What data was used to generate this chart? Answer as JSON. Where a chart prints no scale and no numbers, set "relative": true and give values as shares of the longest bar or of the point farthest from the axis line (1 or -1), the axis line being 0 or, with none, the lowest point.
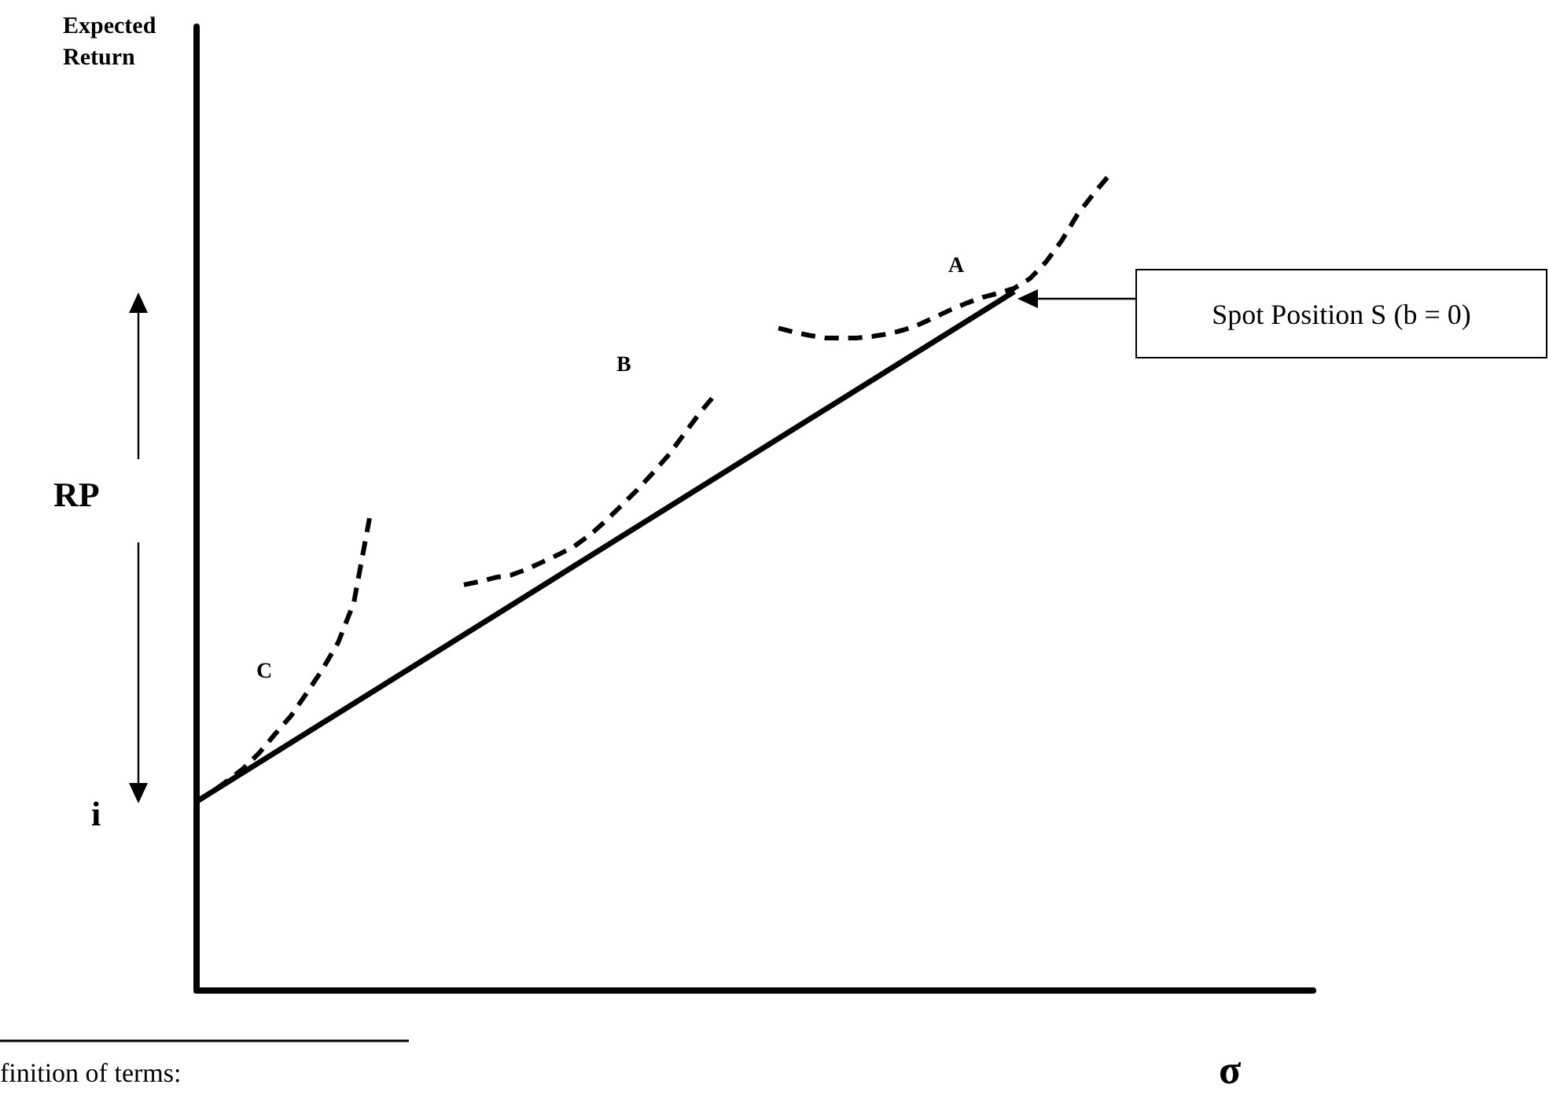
{
  "chart_data": {
    "type": "line",
    "relative": true,
    "ylabel": "Expected Return",
    "xlabel": "σ",
    "marker": "none",
    "categories": [
      null,
      null,
      null,
      null,
      null,
      null,
      null,
      null,
      null,
      null,
      null,
      null,
      null,
      null,
      null,
      null,
      null,
      null,
      null,
      null,
      null,
      null,
      null,
      null,
      null,
      null,
      null,
      null,
      null,
      null,
      null,
      null,
      null,
      null,
      null,
      null,
      null,
      null,
      null,
      null,
      null,
      null,
      null,
      null,
      null,
      null,
      null,
      null,
      null,
      null,
      null,
      null,
      null,
      null,
      null,
      null,
      null,
      null,
      null,
      null,
      null,
      null,
      null,
      null,
      null,
      null,
      null,
      null,
      null,
      null,
      null,
      null
    ],
    "series": [
      {
        "color": "#000000",
        "line_style": "solid",
        "values": [
          0.232,
          null,
          null,
          null,
          null,
          null,
          null,
          null,
          null,
          null,
          null,
          null,
          null,
          null,
          null,
          null,
          null,
          null,
          null,
          null,
          null,
          null,
          null,
          null,
          null,
          null,
          null,
          null,
          null,
          null,
          null,
          null,
          null,
          null,
          null,
          null,
          null,
          null,
          null,
          null,
          null,
          null,
          null,
          null,
          null,
          null,
          null,
          null,
          null,
          null,
          null,
          null,
          0.858,
          null,
          null,
          null,
          null,
          null,
          null,
          null,
          null,
          null,
          null,
          null,
          null,
          null,
          null,
          null,
          null,
          null,
          null,
          null
        ]
      },
      {
        "color": "#000000",
        "line_style": "dashed",
        "values": [
          0.232,
          0.244,
          0.258,
          0.273,
          0.292,
          0.315,
          0.337,
          0.365,
          0.394,
          0.427,
          0.476,
          0.58,
          null,
          null,
          null,
          null,
          null,
          null,
          null,
          null,
          null,
          null,
          null,
          null,
          null,
          null,
          null,
          null,
          null,
          null,
          null,
          null,
          null,
          null,
          null,
          null,
          null,
          null,
          null,
          null,
          null,
          null,
          null,
          null,
          null,
          null,
          null,
          null,
          null,
          null,
          null,
          null,
          null,
          null,
          null,
          null,
          null,
          null,
          null,
          null,
          null,
          null,
          null,
          null,
          null,
          null,
          null,
          null,
          null,
          null,
          null,
          null
        ]
      },
      {
        "color": "#000000",
        "line_style": "dashed",
        "values": [
          null,
          null,
          null,
          null,
          null,
          null,
          null,
          null,
          null,
          null,
          null,
          null,
          null,
          null,
          null,
          null,
          null,
          0.498,
          0.502,
          0.507,
          0.51,
          0.517,
          0.526,
          0.535,
          0.545,
          0.559,
          0.576,
          0.595,
          0.614,
          0.635,
          0.657,
          0.683,
          0.709,
          0.732,
          null,
          null,
          null,
          null,
          null,
          null,
          null,
          null,
          null,
          null,
          null,
          null,
          null,
          null,
          null,
          null,
          null,
          null,
          null,
          null,
          null,
          null,
          null,
          null,
          null,
          null,
          null,
          null,
          null,
          null,
          null,
          null,
          null,
          null,
          null,
          null,
          null,
          null
        ]
      },
      {
        "color": "#000000",
        "line_style": "dashed",
        "values": [
          null,
          null,
          null,
          null,
          null,
          null,
          null,
          null,
          null,
          null,
          null,
          null,
          null,
          null,
          null,
          null,
          null,
          null,
          null,
          null,
          null,
          null,
          null,
          null,
          null,
          null,
          null,
          null,
          null,
          null,
          null,
          null,
          null,
          null,
          null,
          null,
          null,
          0.813,
          0.808,
          0.804,
          0.801,
          0.801,
          0.801,
          0.803,
          0.806,
          0.811,
          0.818,
          0.827,
          0.836,
          0.844,
          0.851,
          0.856,
          0.862,
          0.874,
          0.894,
          0.92,
          0.952,
          0.977,
          1,
          null,
          null,
          null,
          null,
          null,
          null,
          null,
          null,
          null,
          null,
          null,
          null,
          null
        ]
      }
    ],
    "annotations": [
      "A",
      "B",
      "C",
      "RP",
      "i",
      "Spot Position S (b = 0)",
      "finition of terms:"
    ]
  }
}
